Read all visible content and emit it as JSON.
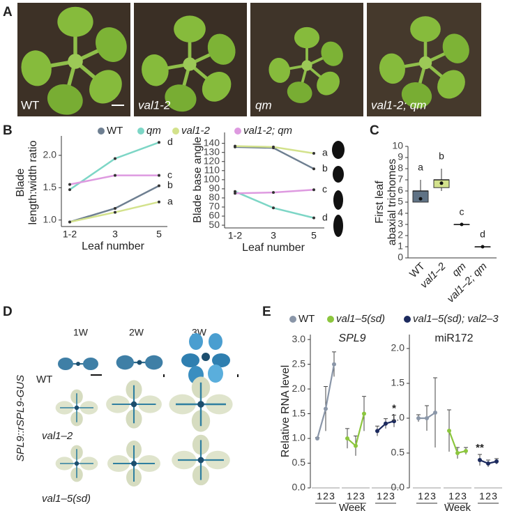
{
  "panel_labels": [
    "A",
    "B",
    "C",
    "D",
    "E"
  ],
  "photos": {
    "labels": [
      "WT",
      "val1-2",
      "qm",
      "val1-2; qm"
    ]
  },
  "gus": {
    "title": "SPL9::rSPL9-GUS",
    "columns": [
      "1W",
      "2W",
      "3W"
    ],
    "rows": [
      "WT",
      "val1–2",
      "val1–5(sd)"
    ]
  },
  "chart_data": [
    {
      "type": "line",
      "xlabel": "Leaf number",
      "ylabel": [
        "Blade",
        "length:width ratio"
      ],
      "categories": [
        "1-2",
        "3",
        "5"
      ],
      "ylim": [
        0.9,
        2.3
      ],
      "yticks": [
        {
          "value": 1.0,
          "label": "1.0"
        },
        {
          "value": 1.5,
          "label": "1.5"
        },
        {
          "value": 2.0,
          "label": "2.0"
        }
      ],
      "series": [
        {
          "name": "WT",
          "color": "#6e7f91",
          "values": [
            0.97,
            1.18,
            1.53
          ],
          "annotation": "b"
        },
        {
          "name": "qm",
          "color": "#7dd6c6",
          "values": [
            1.47,
            1.95,
            2.2
          ],
          "annotation": "d"
        },
        {
          "name": "val1-2",
          "color": "#d3e28c",
          "values": [
            0.97,
            1.12,
            1.28
          ],
          "annotation": "a"
        },
        {
          "name": "val1-2; qm",
          "color": "#de9ae0",
          "values": [
            1.55,
            1.69,
            1.69
          ],
          "annotation": "c"
        }
      ]
    },
    {
      "type": "line",
      "xlabel": "Leaf number",
      "ylabel": [
        "Blade base angle"
      ],
      "categories": [
        "1-2",
        "3",
        "5"
      ],
      "ylim": [
        47,
        152
      ],
      "yticks": [
        50,
        60,
        70,
        80,
        90,
        100,
        110,
        120,
        130,
        140
      ],
      "series": [
        {
          "color": "#6e7f91",
          "values": [
            136,
            135,
            112
          ],
          "annotation": "b"
        },
        {
          "color": "#7dd6c6",
          "values": [
            87,
            69,
            58
          ],
          "annotation": "d"
        },
        {
          "color": "#d3e28c",
          "values": [
            137,
            136,
            129
          ],
          "annotation": "a"
        },
        {
          "color": "#de9ae0",
          "values": [
            85,
            86,
            89
          ],
          "annotation": "c"
        }
      ]
    },
    {
      "type": "box",
      "ylabel": [
        "First leaf",
        "abaxial trichomes"
      ],
      "categories": [
        "WT",
        "val1–2",
        "qm",
        "val1–2; qm"
      ],
      "ylim": [
        0,
        10
      ],
      "yticks": [
        0,
        1,
        2,
        3,
        4,
        5,
        6,
        7,
        8,
        9,
        10
      ],
      "colors": [
        "#5f7285",
        "#d3e28c",
        "#7dd6c6",
        "#de9ae0"
      ],
      "letters": [
        "a",
        "b",
        "c",
        "d"
      ],
      "boxes": [
        {
          "min": 5,
          "q1": 5,
          "median": 6,
          "q3": 6,
          "max": 7,
          "mean": 5.3
        },
        {
          "min": 6,
          "q1": 6.3,
          "median": 7,
          "q3": 7,
          "max": 8,
          "mean": 6.7
        },
        {
          "min": 3,
          "q1": 3,
          "median": 3,
          "q3": 3,
          "max": 3,
          "mean": 3
        },
        {
          "min": 1,
          "q1": 1,
          "median": 1,
          "q3": 1,
          "max": 1,
          "mean": 1
        }
      ]
    },
    {
      "type": "grouped-line",
      "title": "SPL9",
      "xlabel": "Week",
      "ylabel": "Relative RNA level",
      "categories": [
        "1",
        "2",
        "3"
      ],
      "ylim": [
        0,
        3.1
      ],
      "yticks": [
        {
          "value": 0,
          "label": "0.0"
        },
        {
          "value": 0.5,
          "label": "0.5"
        },
        {
          "value": 1,
          "label": "1.0"
        },
        {
          "value": 1.5,
          "label": "1.5"
        },
        {
          "value": 2,
          "label": "2.0"
        },
        {
          "value": 2.5,
          "label": "2.5"
        },
        {
          "value": 3,
          "label": "3.0"
        }
      ],
      "series": [
        {
          "name": "WT",
          "color": "#8a96a8",
          "values": [
            1.0,
            1.6,
            2.5
          ],
          "errors": [
            0.02,
            0.45,
            0.25
          ]
        },
        {
          "name": "val1–5(sd)",
          "color": "#8cc63e",
          "values": [
            1.0,
            0.85,
            1.5
          ],
          "errors": [
            0.2,
            0.2,
            0.35
          ]
        },
        {
          "name": "val1–5(sd); val2–3",
          "color": "#1c2a5e",
          "values": [
            1.15,
            1.3,
            1.35
          ],
          "errors": [
            0.1,
            0.1,
            0.12
          ]
        }
      ],
      "annotations": [
        {
          "text": "*",
          "series": 2,
          "index": 2
        }
      ]
    },
    {
      "type": "grouped-line",
      "title": "miR172",
      "xlabel": "Week",
      "categories": [
        "1",
        "2",
        "3"
      ],
      "ylim": [
        0,
        2.2
      ],
      "yticks": [
        {
          "value": 0,
          "label": "0.0"
        },
        {
          "value": 0.5,
          "label": "0.5"
        },
        {
          "value": 1,
          "label": "1.0"
        },
        {
          "value": 1.5,
          "label": "1.5"
        },
        {
          "value": 2,
          "label": "2.0"
        }
      ],
      "series": [
        {
          "color": "#8a96a8",
          "values": [
            1.0,
            1.0,
            1.08
          ],
          "errors": [
            0.05,
            0.18,
            0.5
          ]
        },
        {
          "color": "#8cc63e",
          "values": [
            0.82,
            0.5,
            0.53
          ],
          "errors": [
            0.3,
            0.08,
            0.05
          ]
        },
        {
          "color": "#1c2a5e",
          "values": [
            0.4,
            0.35,
            0.38
          ],
          "errors": [
            0.08,
            0.05,
            0.04
          ]
        }
      ],
      "annotations": [
        {
          "text": "**",
          "series": 2,
          "index": 0
        }
      ]
    }
  ]
}
